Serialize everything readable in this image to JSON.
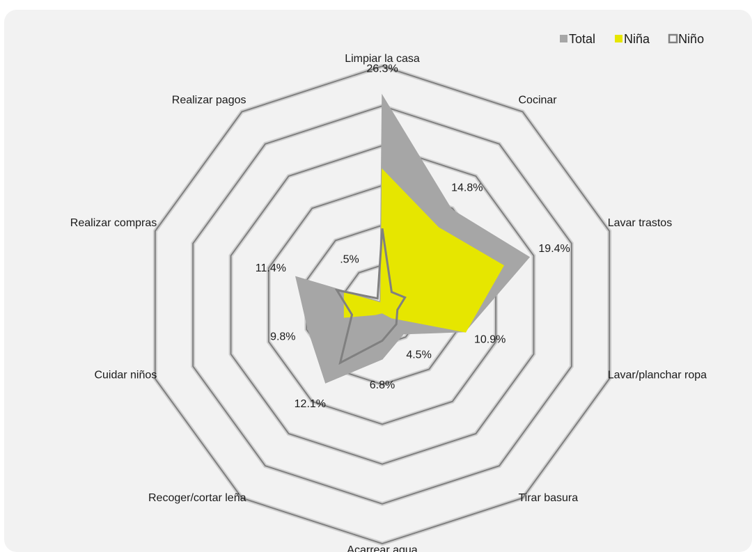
{
  "chart_data": {
    "type": "radar",
    "categories": [
      "Limpiar la casa",
      "Cocinar",
      "Lavar trastos",
      "Lavar/planchar ropa",
      "Tirar basura",
      "Acarrear agua",
      "Recoger/cortar leña",
      "Cuidar niños",
      "Realizar compras",
      "Realizar pagos"
    ],
    "series": [
      {
        "name": "Total",
        "color": "#a6a6a6",
        "values": [
          26.3,
          14.8,
          19.4,
          10.9,
          4.5,
          6.8,
          12.1,
          9.8,
          11.4,
          0.5
        ],
        "value_labels": [
          "26.3%",
          "14.8%",
          "19.4%",
          "10.9%",
          "4.5%",
          "6.8%",
          "12.1%",
          "9.8%",
          "11.4%",
          ".5%"
        ]
      },
      {
        "name": "Niña",
        "color": "#e6e600",
        "values": [
          17,
          12,
          16,
          11,
          2,
          1,
          1.5,
          5,
          5,
          0.3
        ]
      },
      {
        "name": "Niño",
        "color": "#808080",
        "values": [
          9.6,
          2,
          3,
          2,
          3,
          4.5,
          9,
          4,
          6,
          1
        ]
      }
    ],
    "ylim": [
      0,
      30
    ],
    "yticks": [
      0,
      5,
      10,
      15,
      20,
      25,
      30
    ],
    "grid": true,
    "legend": "top-right"
  }
}
